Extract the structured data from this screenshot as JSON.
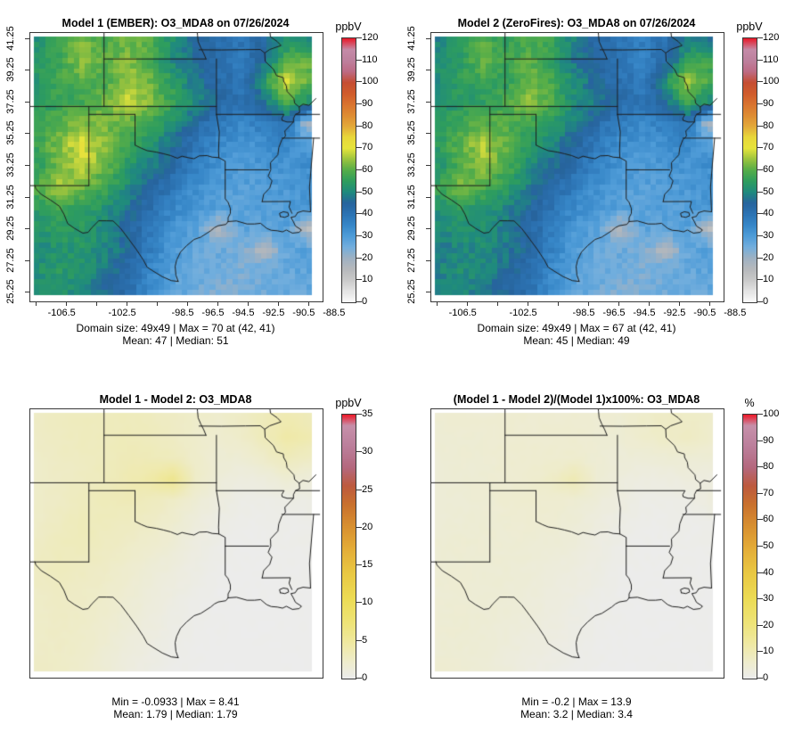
{
  "panels": [
    {
      "id": "model1",
      "title": "Model 1 (EMBER): O3_MDA8 on 07/26/2024",
      "stats": [
        "Domain size: 49x49 | Max = 70 at (42, 41)",
        "Mean: 47 | Median: 51"
      ],
      "colorbar_label": "ppbV",
      "colorbar_min": 0,
      "colorbar_max": 120,
      "colorbar_ticks": [
        0,
        10,
        20,
        30,
        40,
        50,
        60,
        70,
        80,
        90,
        100,
        110,
        120
      ]
    },
    {
      "id": "model2",
      "title": "Model 2 (ZeroFires): O3_MDA8 on 07/26/2024",
      "stats": [
        "Domain size: 49x49 | Max = 67 at (42, 41)",
        "Mean: 45 | Median: 49"
      ],
      "colorbar_label": "ppbV",
      "colorbar_min": 0,
      "colorbar_max": 120,
      "colorbar_ticks": [
        0,
        10,
        20,
        30,
        40,
        50,
        60,
        70,
        80,
        90,
        100,
        110,
        120
      ]
    },
    {
      "id": "difference",
      "title": "Model 1 - Model 2: O3_MDA8",
      "stats": [
        "Min = -0.0933 | Max = 8.41",
        "Mean: 1.79 | Median: 1.79"
      ],
      "colorbar_label": "ppbV",
      "colorbar_min": 0,
      "colorbar_max": 35,
      "colorbar_ticks": [
        0,
        5,
        10,
        15,
        20,
        25,
        30,
        35
      ]
    },
    {
      "id": "percent-difference",
      "title": "(Model 1 - Model 2)/(Model 1)x100%: O3_MDA8",
      "stats": [
        "Min = -0.2 | Max = 13.9",
        "Mean: 3.2 | Median: 3.4"
      ],
      "colorbar_label": "%",
      "colorbar_min": 0,
      "colorbar_max": 100,
      "colorbar_ticks": [
        0,
        10,
        20,
        30,
        40,
        50,
        60,
        70,
        80,
        90,
        100
      ]
    }
  ],
  "axes": {
    "x_ticks": [
      {
        "lon": -106.5,
        "label": "-106.5"
      },
      {
        "lon": -104.5,
        "label": ""
      },
      {
        "lon": -102.5,
        "label": "-102.5"
      },
      {
        "lon": -100.5,
        "label": ""
      },
      {
        "lon": -98.5,
        "label": "-98.5"
      },
      {
        "lon": -96.5,
        "label": "-96.5"
      },
      {
        "lon": -94.5,
        "label": "-94.5"
      },
      {
        "lon": -92.5,
        "label": "-92.5"
      },
      {
        "lon": -90.5,
        "label": "-90.5"
      },
      {
        "lon": -88.5,
        "label": "-88.5"
      }
    ],
    "y_ticks": [
      {
        "lat": 25.25,
        "label": "25.25"
      },
      {
        "lat": 27.25,
        "label": "27.25"
      },
      {
        "lat": 29.25,
        "label": "29.25"
      },
      {
        "lat": 31.25,
        "label": "31.25"
      },
      {
        "lat": 33.25,
        "label": "33.25"
      },
      {
        "lat": 35.25,
        "label": "35.25"
      },
      {
        "lat": 37.25,
        "label": "37.25"
      },
      {
        "lat": 39.25,
        "label": "39.25"
      },
      {
        "lat": 41.25,
        "label": "41.25"
      }
    ]
  },
  "chart_data": [
    {
      "type": "heatmap",
      "title": "Model 1 (EMBER): O3_MDA8 on 07/26/2024",
      "units": "ppbV",
      "scale_range": [
        0,
        120
      ],
      "lon_range": [
        -106.5,
        -88.5
      ],
      "lat_range": [
        25.25,
        41.25
      ],
      "domain_size": "49x49",
      "max": 70,
      "max_at": [
        42,
        41
      ],
      "mean": 47,
      "median": 51,
      "approx_grid_13x13_north_to_south": [
        [
          52,
          56,
          63,
          58,
          62,
          60,
          52,
          46,
          42,
          40,
          44,
          52,
          50
        ],
        [
          54,
          58,
          64,
          60,
          64,
          58,
          50,
          46,
          41,
          38,
          46,
          58,
          62
        ],
        [
          53,
          57,
          60,
          58,
          65,
          62,
          54,
          48,
          42,
          40,
          52,
          70,
          60
        ],
        [
          55,
          56,
          58,
          62,
          68,
          63,
          57,
          50,
          44,
          40,
          46,
          58,
          52
        ],
        [
          56,
          60,
          64,
          62,
          61,
          57,
          51,
          44,
          38,
          35,
          37,
          40,
          18
        ],
        [
          57,
          63,
          70,
          64,
          57,
          52,
          46,
          40,
          34,
          32,
          33,
          35,
          30
        ],
        [
          55,
          62,
          68,
          62,
          54,
          49,
          43,
          37,
          32,
          30,
          31,
          32,
          33
        ],
        [
          60,
          66,
          62,
          57,
          51,
          45,
          39,
          33,
          30,
          29,
          30,
          31,
          32
        ],
        [
          55,
          58,
          56,
          52,
          47,
          42,
          35,
          31,
          29,
          28,
          29,
          30,
          31
        ],
        [
          52,
          55,
          54,
          50,
          45,
          39,
          32,
          29,
          18,
          27,
          28,
          29,
          15
        ],
        [
          50,
          52,
          53,
          50,
          45,
          37,
          31,
          27,
          26,
          25,
          16,
          27,
          29
        ],
        [
          52,
          54,
          52,
          48,
          43,
          35,
          29,
          26,
          25,
          24,
          26,
          27,
          28
        ],
        [
          50,
          52,
          50,
          46,
          42,
          34,
          28,
          25,
          24,
          24,
          25,
          26,
          27
        ]
      ]
    },
    {
      "type": "heatmap",
      "title": "Model 2 (ZeroFires): O3_MDA8 on 07/26/2024",
      "units": "ppbV",
      "scale_range": [
        0,
        120
      ],
      "lon_range": [
        -106.5,
        -88.5
      ],
      "lat_range": [
        25.25,
        41.25
      ],
      "domain_size": "49x49",
      "max": 67,
      "max_at": [
        42,
        41
      ],
      "mean": 45,
      "median": 49,
      "derived": "model1_grid minus difference_grid"
    },
    {
      "type": "heatmap",
      "title": "Model 1 - Model 2: O3_MDA8",
      "units": "ppbV",
      "scale_range": [
        0,
        35
      ],
      "lon_range": [
        -106.5,
        -88.5
      ],
      "lat_range": [
        25.25,
        41.25
      ],
      "min": -0.0933,
      "max": 8.41,
      "mean": 1.79,
      "median": 1.79,
      "approx_grid_13x13_north_to_south": [
        [
          2.6,
          2.8,
          3.0,
          3.0,
          3.1,
          2.9,
          2.6,
          2.3,
          2.1,
          2.6,
          3.2,
          3.6,
          3.2
        ],
        [
          2.5,
          2.8,
          3.0,
          3.0,
          3.2,
          3.0,
          2.6,
          2.1,
          1.8,
          2.3,
          3.2,
          4.2,
          3.8
        ],
        [
          2.3,
          2.6,
          2.8,
          3.0,
          3.4,
          3.3,
          3.0,
          2.2,
          1.6,
          1.6,
          2.2,
          3.2,
          2.6
        ],
        [
          2.3,
          2.5,
          2.8,
          3.1,
          3.6,
          4.2,
          5.8,
          2.4,
          1.3,
          0.8,
          1.0,
          1.6,
          1.2
        ],
        [
          2.3,
          2.6,
          3.0,
          3.2,
          3.4,
          3.0,
          2.4,
          1.6,
          0.9,
          0.4,
          0.4,
          0.5,
          0.5
        ],
        [
          2.3,
          2.8,
          3.2,
          3.0,
          2.8,
          2.5,
          1.9,
          1.1,
          0.5,
          0.2,
          0.2,
          0.2,
          0.3
        ],
        [
          2.6,
          3.0,
          3.2,
          2.8,
          2.5,
          2.1,
          1.5,
          0.8,
          0.3,
          0.1,
          0.1,
          0.2,
          0.2
        ],
        [
          2.8,
          3.0,
          2.8,
          2.5,
          2.1,
          1.6,
          1.1,
          0.6,
          0.2,
          0.1,
          0.1,
          0.1,
          0.1
        ],
        [
          2.6,
          2.8,
          2.6,
          2.3,
          1.8,
          1.3,
          0.8,
          0.4,
          0.1,
          0.0,
          0.0,
          0.1,
          0.1
        ],
        [
          2.3,
          2.6,
          2.4,
          2.1,
          1.6,
          1.1,
          0.6,
          0.2,
          0.1,
          0.0,
          0.0,
          0.0,
          0.0
        ],
        [
          2.3,
          2.5,
          2.3,
          1.9,
          1.3,
          0.9,
          0.5,
          0.2,
          0.1,
          0.0,
          0.0,
          0.0,
          0.0
        ],
        [
          2.4,
          2.5,
          2.2,
          1.7,
          1.1,
          0.7,
          0.3,
          0.1,
          0.0,
          0.0,
          0.0,
          0.0,
          0.0
        ],
        [
          2.5,
          2.4,
          2.1,
          1.5,
          0.9,
          0.5,
          0.2,
          0.1,
          0.0,
          0.0,
          0.0,
          0.0,
          0.0
        ]
      ]
    },
    {
      "type": "heatmap",
      "title": "(Model 1 - Model 2)/(Model 1)x100%: O3_MDA8",
      "units": "%",
      "scale_range": [
        0,
        100
      ],
      "lon_range": [
        -106.5,
        -88.5
      ],
      "lat_range": [
        25.25,
        41.25
      ],
      "min": -0.2,
      "max": 13.9,
      "mean": 3.2,
      "median": 3.4,
      "derived": "difference_grid / model1_grid x 100"
    }
  ],
  "colormaps": {
    "concentration_ppbv": [
      {
        "v": 0,
        "c": "#fbfbfb"
      },
      {
        "v": 5,
        "c": "#e3e3e3"
      },
      {
        "v": 10,
        "c": "#c9c9c9"
      },
      {
        "v": 15,
        "c": "#b6b9bc"
      },
      {
        "v": 20,
        "c": "#9eb1c3"
      },
      {
        "v": 25,
        "c": "#72aedd"
      },
      {
        "v": 30,
        "c": "#4f9cd8"
      },
      {
        "v": 35,
        "c": "#3787c8"
      },
      {
        "v": 40,
        "c": "#2c73b3"
      },
      {
        "v": 45,
        "c": "#27649d"
      },
      {
        "v": 50,
        "c": "#1f8a7e"
      },
      {
        "v": 55,
        "c": "#2e9d5e"
      },
      {
        "v": 60,
        "c": "#55ad49"
      },
      {
        "v": 65,
        "c": "#9ac33e"
      },
      {
        "v": 70,
        "c": "#e6e43c"
      },
      {
        "v": 75,
        "c": "#e8d83a"
      },
      {
        "v": 80,
        "c": "#e3a93a"
      },
      {
        "v": 85,
        "c": "#de8d33"
      },
      {
        "v": 90,
        "c": "#d9752f"
      },
      {
        "v": 95,
        "c": "#d05c2c"
      },
      {
        "v": 100,
        "c": "#c54e32"
      },
      {
        "v": 105,
        "c": "#bd6b85"
      },
      {
        "v": 110,
        "c": "#bd809d"
      },
      {
        "v": 115,
        "c": "#c48ca8"
      },
      {
        "v": 120,
        "c": "#e81c2c"
      }
    ],
    "difference_fraction": [
      {
        "v": 0,
        "c": "#ececec"
      },
      {
        "v": 0.06,
        "c": "#eeeccd"
      },
      {
        "v": 0.13,
        "c": "#efe9a4"
      },
      {
        "v": 0.2,
        "c": "#eee47c"
      },
      {
        "v": 0.3,
        "c": "#ecdc55"
      },
      {
        "v": 0.4,
        "c": "#e9c843"
      },
      {
        "v": 0.5,
        "c": "#e3aa37"
      },
      {
        "v": 0.58,
        "c": "#d78f30"
      },
      {
        "v": 0.66,
        "c": "#c9712e"
      },
      {
        "v": 0.73,
        "c": "#bd5a3e"
      },
      {
        "v": 0.8,
        "c": "#b4687e"
      },
      {
        "v": 0.88,
        "c": "#bb7f9b"
      },
      {
        "v": 0.96,
        "c": "#c690aa"
      },
      {
        "v": 1,
        "c": "#ec1c2c"
      }
    ]
  }
}
